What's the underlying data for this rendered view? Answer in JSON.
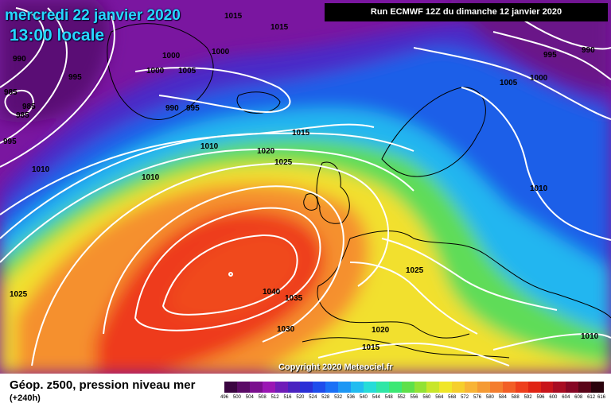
{
  "header": {
    "date": "mercredi 22 janvier 2020",
    "time": "13:00 locale",
    "run": "Run ECMWF 12Z du dimanche 12 janvier 2020"
  },
  "copyright": "Copyright 2020 Meteociel.fr",
  "footer": {
    "title": "Géop. z500, pression niveau mer",
    "subtitle": "(+240h)"
  },
  "legend": {
    "labels": [
      "496",
      "500",
      "504",
      "508",
      "512",
      "516",
      "520",
      "524",
      "528",
      "532",
      "536",
      "540",
      "544",
      "548",
      "552",
      "556",
      "560",
      "564",
      "568",
      "572",
      "576",
      "580",
      "584",
      "588",
      "592",
      "596",
      "600",
      "604",
      "608",
      "612",
      "616"
    ],
    "colors": [
      "#3a0440",
      "#5a0a66",
      "#7a0e8e",
      "#9a16b4",
      "#6f1cb8",
      "#4a22c0",
      "#2a2fd6",
      "#1e4cec",
      "#1a70f6",
      "#1d97f4",
      "#21bcf0",
      "#25dcd8",
      "#2fe6a6",
      "#3ce874",
      "#5ee04a",
      "#92e234",
      "#c8e62a",
      "#f0e628",
      "#f6cf2c",
      "#f8b436",
      "#f59a34",
      "#f47d2e",
      "#f25e26",
      "#ee3e1c",
      "#e02414",
      "#c8141a",
      "#a80c22",
      "#860624",
      "#5a0418",
      "#2a020c"
    ]
  },
  "map": {
    "colors": {
      "magenta": "#8a1cac",
      "darkpurple": "#5a0d74",
      "indigo": "#3e2cc0",
      "blue": "#1d5ee8",
      "cyan": "#22b6f0",
      "green": "#5fdc58",
      "yellow": "#f2e02e",
      "orange": "#f5902e",
      "red": "#ee3a1e",
      "isobar": "#ffffff",
      "coast": "#000000"
    },
    "isobar_labels": [
      {
        "text": "1015"
      },
      {
        "text": "1015"
      },
      {
        "text": "990"
      },
      {
        "text": "995"
      },
      {
        "text": "985"
      },
      {
        "text": "985"
      },
      {
        "text": "985"
      },
      {
        "text": "995"
      },
      {
        "text": "1000"
      },
      {
        "text": "1000"
      },
      {
        "text": "1005"
      },
      {
        "text": "990"
      },
      {
        "text": "995"
      },
      {
        "text": "1010"
      },
      {
        "text": "1010"
      },
      {
        "text": "1015"
      },
      {
        "text": "1020"
      },
      {
        "text": "1025"
      },
      {
        "text": "1010"
      },
      {
        "text": "1025"
      },
      {
        "text": "1040"
      },
      {
        "text": "1035"
      },
      {
        "text": "1030"
      },
      {
        "text": "1020"
      },
      {
        "text": "1025"
      },
      {
        "text": "1015"
      },
      {
        "text": "1010"
      },
      {
        "text": "995"
      },
      {
        "text": "990"
      },
      {
        "text": "1000"
      },
      {
        "text": "1005"
      },
      {
        "text": "1010"
      },
      {
        "text": "1000"
      }
    ]
  }
}
